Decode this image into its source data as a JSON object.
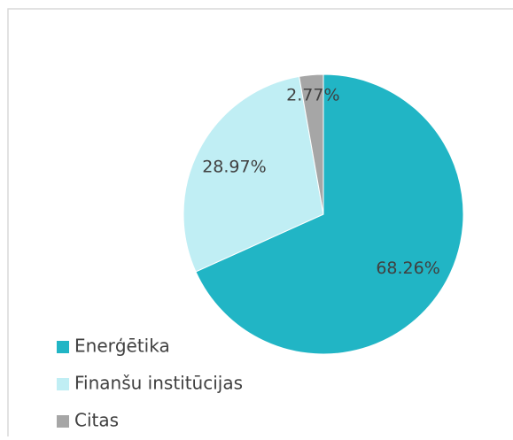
{
  "chart_data": {
    "type": "pie",
    "categories": [
      "Enerģētika",
      "Finanšu institūcijas",
      "Citas"
    ],
    "values": [
      68.26,
      28.97,
      2.77
    ],
    "value_labels": [
      "68.26%",
      "28.97%",
      "2.77%"
    ],
    "colors": [
      "#21b5c5",
      "#c0eef4",
      "#a6a6a6"
    ],
    "legend": "bottom-left"
  }
}
